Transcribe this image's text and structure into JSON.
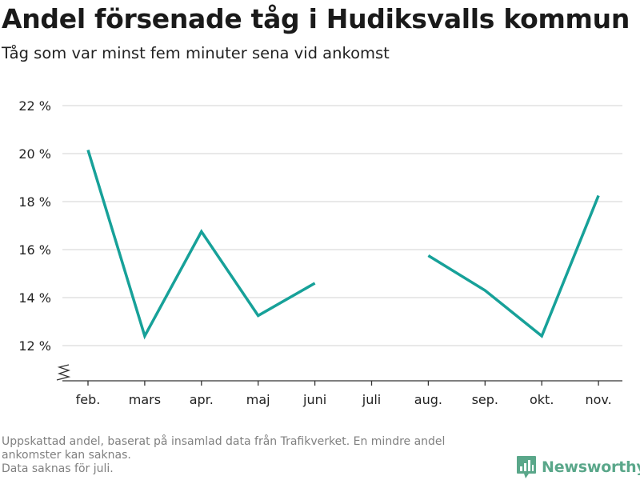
{
  "title": "Andel försenade tåg i Hudiksvalls kommun",
  "subtitle": "Tåg som var minst fem minuter sena vid ankomst",
  "footnote": {
    "line1": "Uppskattad andel, baserat på insamlad data från Trafikverket. En mindre andel",
    "line2": "ankomster kan saknas.",
    "line3": "Data saknas för juli."
  },
  "brand": "Newsworthy",
  "colors": {
    "line": "#17a199",
    "grid": "#dcdcdc",
    "axis": "#333333",
    "brand": "#5aa78a"
  },
  "chart_data": {
    "type": "line",
    "categories": [
      "feb.",
      "mars",
      "apr.",
      "maj",
      "juni",
      "juli",
      "aug.",
      "sep.",
      "okt.",
      "nov."
    ],
    "series": [
      {
        "values": [
          20.15,
          12.4,
          16.75,
          13.25,
          14.6,
          null,
          15.75,
          14.3,
          12.4,
          18.25
        ]
      }
    ],
    "yticks": [
      12,
      14,
      16,
      18,
      20,
      22
    ],
    "ytick_labels": [
      "12 %",
      "14 %",
      "16 %",
      "18 %",
      "20 %",
      "22 %"
    ],
    "ylim": [
      11.4,
      22
    ],
    "axis_break": true,
    "grid": true,
    "xlabel": "",
    "ylabel": ""
  }
}
